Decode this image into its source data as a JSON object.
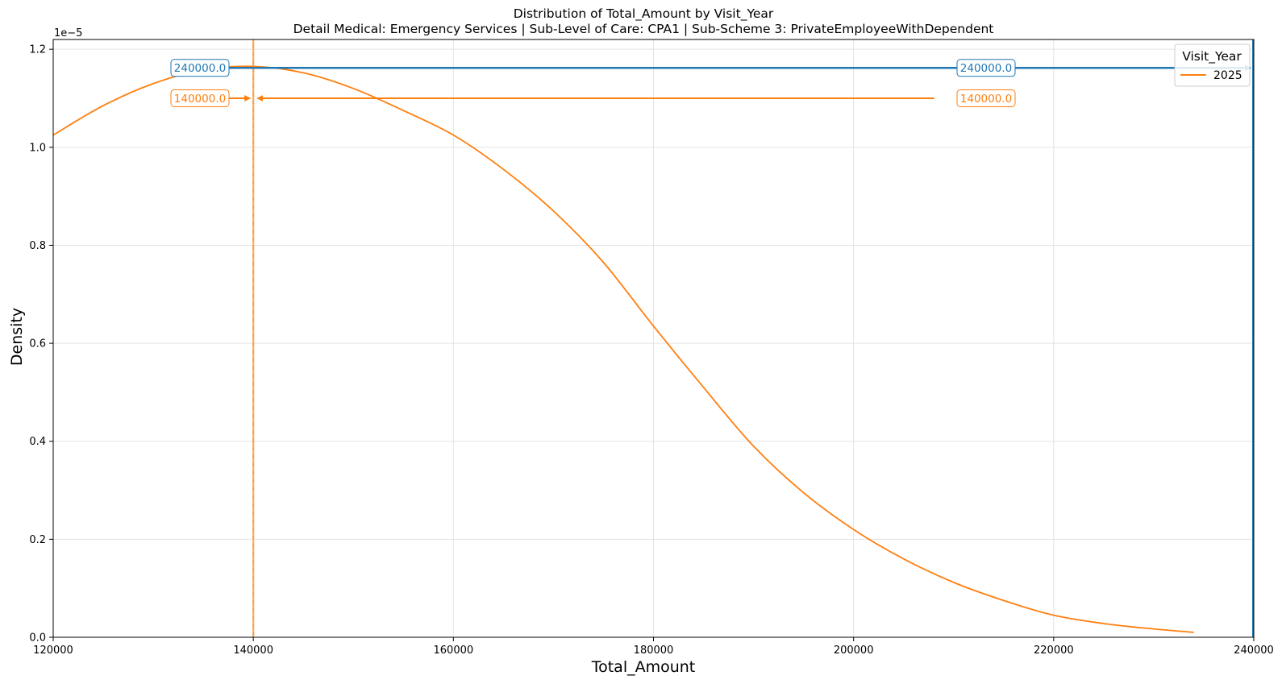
{
  "chart_data": {
    "type": "line",
    "title": "Distribution of Total_Amount by Visit_Year",
    "subtitle": "Detail Medical: Emergency Services | Sub-Level of Care: CPA1 | Sub-Scheme 3: PrivateEmployeeWithDependent",
    "xlabel": "Total_Amount",
    "ylabel": "Density",
    "xlim": [
      120000,
      240000
    ],
    "ylim": [
      0,
      1.22
    ],
    "y_scale_exponent": "1e−5",
    "x_ticks": [
      120000,
      140000,
      160000,
      180000,
      200000,
      220000,
      240000
    ],
    "y_ticks": [
      0.0,
      0.2,
      0.4,
      0.6,
      0.8,
      1.0,
      1.2
    ],
    "grid": true,
    "legend": {
      "title": "Visit_Year",
      "placement": "top-right",
      "entries": [
        "2025"
      ]
    },
    "series": [
      {
        "name": "2025",
        "color": "#ff7f0e",
        "x": [
          120000,
          125000,
          130000,
          135000,
          140000,
          145000,
          150000,
          155000,
          160000,
          165000,
          170000,
          175000,
          180000,
          185000,
          190000,
          195000,
          200000,
          205000,
          210000,
          215000,
          220000,
          225000,
          230000,
          234000
        ],
        "y": [
          1.025,
          1.085,
          1.13,
          1.158,
          1.165,
          1.152,
          1.12,
          1.075,
          1.025,
          0.955,
          0.87,
          0.765,
          0.635,
          0.51,
          0.39,
          0.295,
          0.22,
          0.16,
          0.112,
          0.075,
          0.045,
          0.028,
          0.017,
          0.01
        ]
      }
    ],
    "annotations": [
      {
        "text": "240000.0",
        "color": "#1f77b4",
        "y": 1.162,
        "x_from": 120000,
        "x_to": 240000,
        "kind": "horizontal-line"
      },
      {
        "text": "240000.0",
        "color": "#1f77b4",
        "y": 1.162,
        "kind": "label-right"
      },
      {
        "text": "140000.0",
        "color": "#ff7f0e",
        "y": 1.1,
        "x_from": 140000,
        "x_to": 140000,
        "kind": "arrow-left"
      },
      {
        "text": "140000.0",
        "color": "#ff7f0e",
        "y": 1.1,
        "x_from": 140000,
        "x_to": 210000,
        "kind": "arrow-right"
      }
    ],
    "vertical_lines": [
      {
        "x": 140000,
        "color": "#ff7f0e",
        "style": "dashed"
      },
      {
        "x": 240000,
        "color": "#1f77b4",
        "style": "solid"
      }
    ]
  }
}
